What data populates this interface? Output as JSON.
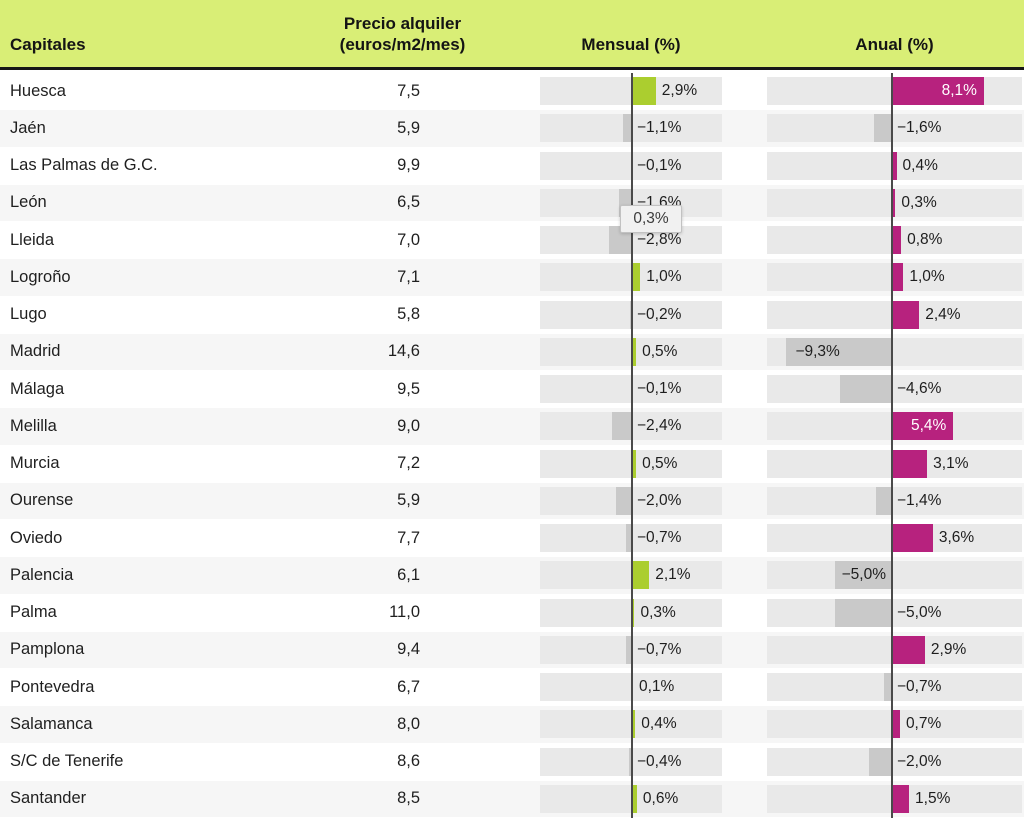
{
  "header": {
    "capitales": "Capitales",
    "precio_line1": "Precio alquiler",
    "precio_line2": "(euros/m2/mes)",
    "mensual": "Mensual (%)",
    "anual": "Anual (%)"
  },
  "tooltip": {
    "text": "0,3%"
  },
  "colors": {
    "header_bg": "#d9ee76",
    "mensual_positive_bar": "#abce2f",
    "anual_positive_bar": "#b7227e",
    "negative_bar": "#c9c9c9",
    "track_bg": "#e9e9e9",
    "zero_line": "#4a4a4a"
  },
  "chart_data": {
    "type": "table",
    "title": "",
    "columns": [
      "Capitales",
      "Precio alquiler (euros/m2/mes)",
      "Mensual (%)",
      "Anual (%)"
    ],
    "rows": [
      {
        "capital": "Huesca",
        "precio": "7,5",
        "mensual": 2.9,
        "mensual_label": "2,9%",
        "anual": 8.1,
        "anual_label": "8,1%",
        "anual_label_pos": "inside-far",
        "anual_label_white": true
      },
      {
        "capital": "Jaén",
        "precio": "5,9",
        "mensual": -1.1,
        "mensual_label": "−1,1%",
        "anual": -1.6,
        "anual_label": "−1,6%",
        "anual_label_pos": "out"
      },
      {
        "capital": "Las Palmas de G.C.",
        "precio": "9,9",
        "mensual": -0.1,
        "mensual_label": "−0,1%",
        "anual": 0.4,
        "anual_label": "0,4%",
        "anual_label_pos": "out"
      },
      {
        "capital": "León",
        "precio": "6,5",
        "mensual": -1.6,
        "mensual_label": "−1,6%",
        "anual": 0.3,
        "anual_label": "0,3%",
        "anual_label_pos": "out"
      },
      {
        "capital": "Lleida",
        "precio": "7,0",
        "mensual": -2.8,
        "mensual_label": "−2,8%",
        "anual": 0.8,
        "anual_label": "0,8%",
        "anual_label_pos": "out"
      },
      {
        "capital": "Logroño",
        "precio": "7,1",
        "mensual": 1.0,
        "mensual_label": "1,0%",
        "anual": 1.0,
        "anual_label": "1,0%",
        "anual_label_pos": "out"
      },
      {
        "capital": "Lugo",
        "precio": "5,8",
        "mensual": -0.2,
        "mensual_label": "−0,2%",
        "anual": 2.4,
        "anual_label": "2,4%",
        "anual_label_pos": "out"
      },
      {
        "capital": "Madrid",
        "precio": "14,6",
        "mensual": 0.5,
        "mensual_label": "0,5%",
        "anual": -9.3,
        "anual_label": "−9,3%",
        "anual_label_pos": "inside-far"
      },
      {
        "capital": "Málaga",
        "precio": "9,5",
        "mensual": -0.1,
        "mensual_label": "−0,1%",
        "anual": -4.6,
        "anual_label": "−4,6%",
        "anual_label_pos": "out"
      },
      {
        "capital": "Melilla",
        "precio": "9,0",
        "mensual": -2.4,
        "mensual_label": "−2,4%",
        "anual": 5.4,
        "anual_label": "5,4%",
        "anual_label_pos": "inside-far",
        "anual_label_white": true
      },
      {
        "capital": "Murcia",
        "precio": "7,2",
        "mensual": 0.5,
        "mensual_label": "0,5%",
        "anual": 3.1,
        "anual_label": "3,1%",
        "anual_label_pos": "out"
      },
      {
        "capital": "Ourense",
        "precio": "5,9",
        "mensual": -2.0,
        "mensual_label": "−2,0%",
        "anual": -1.4,
        "anual_label": "−1,4%",
        "anual_label_pos": "out"
      },
      {
        "capital": "Oviedo",
        "precio": "7,7",
        "mensual": -0.7,
        "mensual_label": "−0,7%",
        "anual": 3.6,
        "anual_label": "3,6%",
        "anual_label_pos": "out"
      },
      {
        "capital": "Palencia",
        "precio": "6,1",
        "mensual": 2.1,
        "mensual_label": "2,1%",
        "anual": -5.0,
        "anual_label": "−5,0%",
        "anual_label_pos": "inside-near-zero"
      },
      {
        "capital": "Palma",
        "precio": "11,0",
        "mensual": 0.3,
        "mensual_label": "0,3%",
        "anual": -5.0,
        "anual_label": "−5,0%",
        "anual_label_pos": "out"
      },
      {
        "capital": "Pamplona",
        "precio": "9,4",
        "mensual": -0.7,
        "mensual_label": "−0,7%",
        "anual": 2.9,
        "anual_label": "2,9%",
        "anual_label_pos": "out"
      },
      {
        "capital": "Pontevedra",
        "precio": "6,7",
        "mensual": 0.1,
        "mensual_label": "0,1%",
        "anual": -0.7,
        "anual_label": "−0,7%",
        "anual_label_pos": "out"
      },
      {
        "capital": "Salamanca",
        "precio": "8,0",
        "mensual": 0.4,
        "mensual_label": "0,4%",
        "anual": 0.7,
        "anual_label": "0,7%",
        "anual_label_pos": "out"
      },
      {
        "capital": "S/C de Tenerife",
        "precio": "8,6",
        "mensual": -0.4,
        "mensual_label": "−0,4%",
        "anual": -2.0,
        "anual_label": "−2,0%",
        "anual_label_pos": "out"
      },
      {
        "capital": "Santander",
        "precio": "8,5",
        "mensual": 0.6,
        "mensual_label": "0,6%",
        "anual": 1.5,
        "anual_label": "1,5%",
        "anual_label_pos": "out"
      }
    ]
  }
}
